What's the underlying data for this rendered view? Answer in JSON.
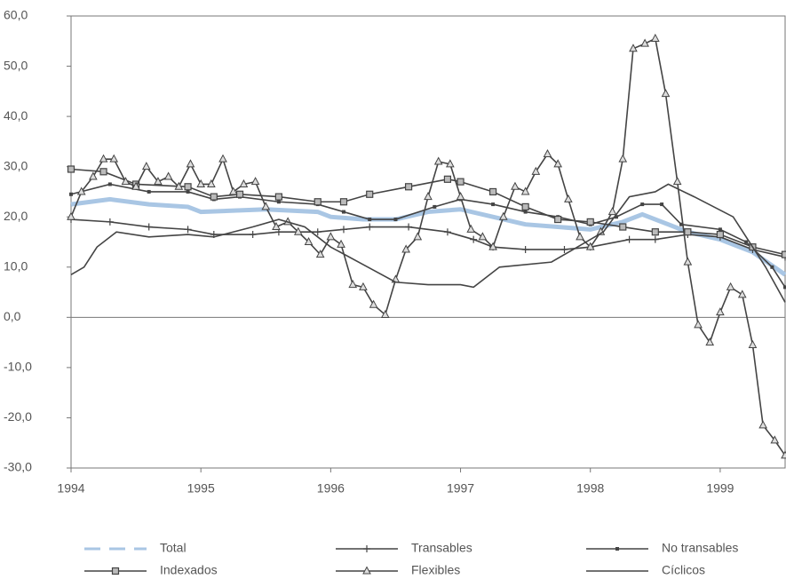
{
  "chart_data": {
    "type": "line",
    "xlim": [
      1994,
      1999.5
    ],
    "xticks": [
      1994,
      1995,
      1996,
      1997,
      1998,
      1999
    ],
    "ylim": [
      -30,
      60
    ],
    "yticks": [
      {
        "value": -30,
        "label": "-30,0"
      },
      {
        "value": -20,
        "label": "-20,0"
      },
      {
        "value": -10,
        "label": "-10,0"
      },
      {
        "value": 0,
        "label": "0,0"
      },
      {
        "value": 10,
        "label": "10,0"
      },
      {
        "value": 20,
        "label": "20,0"
      },
      {
        "value": 30,
        "label": "30,0"
      },
      {
        "value": 40,
        "label": "40,0"
      },
      {
        "value": 50,
        "label": "50,0"
      },
      {
        "value": 60,
        "label": "60,0"
      }
    ],
    "series": [
      {
        "name": "Total",
        "color": "#a9c6e4",
        "marker": "none",
        "dash": true,
        "x": [
          1994,
          1994.3,
          1994.6,
          1994.9,
          1995.0,
          1995.5,
          1995.9,
          1996.0,
          1996.25,
          1996.5,
          1996.75,
          1997.0,
          1997.5,
          1998.0,
          1998.25,
          1998.4,
          1998.6,
          1998.75,
          1999.0,
          1999.25,
          1999.5
        ],
        "values": [
          22.5,
          23.5,
          22.5,
          22,
          21,
          21.5,
          21,
          20,
          19.5,
          19.5,
          21,
          21.5,
          18.5,
          17.5,
          19,
          20.5,
          18.5,
          17,
          15.5,
          13,
          8.5
        ]
      },
      {
        "name": "Transables",
        "color": "#444444",
        "marker": "plus",
        "x": [
          1994,
          1994.3,
          1994.6,
          1994.9,
          1995.1,
          1995.4,
          1995.6,
          1995.9,
          1996.1,
          1996.3,
          1996.6,
          1996.9,
          1997.1,
          1997.25,
          1997.5,
          1997.8,
          1998.0,
          1998.3,
          1998.5,
          1998.75,
          1999.0,
          1999.25,
          1999.5
        ],
        "values": [
          19.5,
          19,
          18,
          17.5,
          16.5,
          16.5,
          17,
          17,
          17.5,
          18,
          18,
          17,
          15.5,
          14,
          13.5,
          13.5,
          14,
          15.5,
          15.5,
          16.5,
          16,
          13.5,
          12
        ]
      },
      {
        "name": "No transables",
        "color": "#444444",
        "marker": "dot",
        "x": [
          1994,
          1994.3,
          1994.6,
          1994.9,
          1995.1,
          1995.3,
          1995.6,
          1995.9,
          1996.1,
          1996.3,
          1996.5,
          1996.8,
          1997.0,
          1997.25,
          1997.5,
          1997.75,
          1998.0,
          1998.2,
          1998.4,
          1998.55,
          1998.7,
          1999.0,
          1999.2,
          1999.4,
          1999.5
        ],
        "values": [
          24.5,
          26.5,
          25,
          25,
          23.5,
          24,
          23,
          22.5,
          21,
          19.5,
          19.5,
          22,
          23.5,
          22.5,
          21,
          20,
          18.5,
          20,
          22.5,
          22.5,
          18.5,
          17.5,
          15,
          10,
          6
        ]
      },
      {
        "name": "Indexados",
        "color": "#444444",
        "marker": "square",
        "x": [
          1994,
          1994.25,
          1994.5,
          1994.9,
          1995.1,
          1995.3,
          1995.6,
          1995.9,
          1996.1,
          1996.3,
          1996.6,
          1996.9,
          1997.0,
          1997.25,
          1997.5,
          1997.75,
          1998.0,
          1998.25,
          1998.5,
          1998.75,
          1999.0,
          1999.25,
          1999.5
        ],
        "values": [
          29.5,
          29,
          26.5,
          26,
          24,
          24.5,
          24,
          23,
          23,
          24.5,
          26,
          27.5,
          27,
          25,
          22,
          19.5,
          19,
          18,
          17,
          17,
          16.5,
          14,
          12.5
        ]
      },
      {
        "name": "Flexibles",
        "color": "#444444",
        "marker": "triangle",
        "x": [
          1994.0,
          1994.08,
          1994.17,
          1994.25,
          1994.33,
          1994.42,
          1994.5,
          1994.58,
          1994.67,
          1994.75,
          1994.83,
          1994.92,
          1995.0,
          1995.08,
          1995.17,
          1995.25,
          1995.33,
          1995.42,
          1995.5,
          1995.58,
          1995.67,
          1995.75,
          1995.83,
          1995.92,
          1996.0,
          1996.08,
          1996.17,
          1996.25,
          1996.33,
          1996.42,
          1996.5,
          1996.58,
          1996.67,
          1996.75,
          1996.83,
          1996.92,
          1997.0,
          1997.08,
          1997.17,
          1997.25,
          1997.33,
          1997.42,
          1997.5,
          1997.58,
          1997.67,
          1997.75,
          1997.83,
          1997.92,
          1998.0,
          1998.08,
          1998.17,
          1998.25,
          1998.33,
          1998.42,
          1998.5,
          1998.58,
          1998.67,
          1998.75,
          1998.83,
          1998.92,
          1999.0,
          1999.08,
          1999.17,
          1999.25,
          1999.33,
          1999.42,
          1999.5
        ],
        "values": [
          20,
          25,
          28,
          31.5,
          31.5,
          27,
          26,
          30,
          27,
          28,
          26,
          30.5,
          26.5,
          26.5,
          31.5,
          25,
          26.5,
          27,
          22,
          18,
          19,
          17,
          15,
          12.5,
          16,
          14.5,
          6.5,
          6,
          2.5,
          0.5,
          7.5,
          13.5,
          16,
          24,
          31,
          30.5,
          24,
          17.5,
          16,
          14,
          20,
          26,
          25,
          29,
          32.5,
          30.5,
          23.5,
          16,
          14,
          17,
          21,
          31.5,
          53.5,
          54.5,
          55.5,
          44.5,
          27,
          11,
          -1.5,
          -5,
          1,
          6,
          4.5,
          -5.5,
          -21.5,
          -24.5,
          -27.5
        ]
      },
      {
        "name": "Cíclicos",
        "color": "#444444",
        "marker": "none",
        "x": [
          1994,
          1994.1,
          1994.2,
          1994.35,
          1994.6,
          1994.9,
          1995.1,
          1995.4,
          1995.6,
          1995.8,
          1996.0,
          1996.25,
          1996.5,
          1996.75,
          1997.0,
          1997.1,
          1997.3,
          1997.7,
          1997.9,
          1998.1,
          1998.3,
          1998.5,
          1998.6,
          1998.8,
          1999.1,
          1999.35,
          1999.5
        ],
        "values": [
          8.5,
          10,
          14,
          17,
          16,
          16.5,
          16,
          18,
          19.5,
          18,
          14,
          10.5,
          7,
          6.5,
          6.5,
          6,
          10,
          11,
          14,
          17,
          24,
          25,
          26.5,
          24,
          20,
          10,
          3
        ]
      }
    ]
  }
}
